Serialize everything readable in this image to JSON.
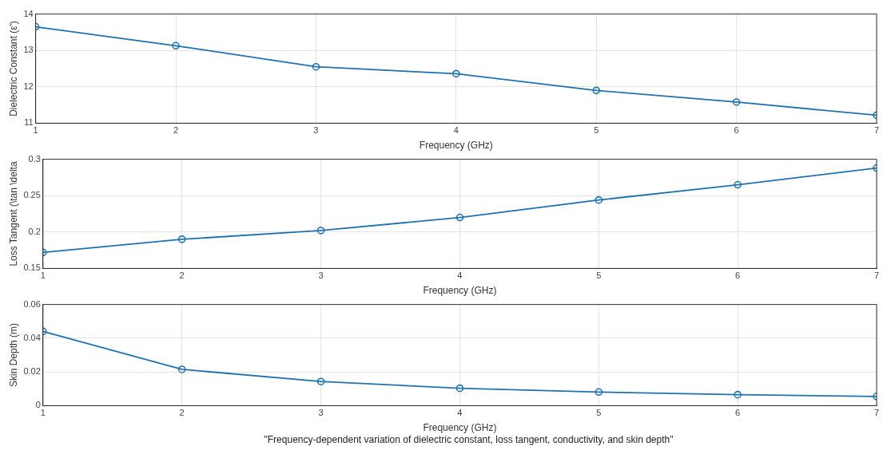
{
  "chart_data": [
    {
      "type": "line",
      "xlabel": "Frequency (GHz)",
      "ylabel": "Dielectric Constant (ε')",
      "x": [
        1,
        2,
        3,
        4,
        5,
        6,
        7
      ],
      "series": [
        {
          "color": "#1f72b0",
          "values": [
            13.65,
            13.13,
            12.55,
            12.36,
            11.9,
            11.58,
            11.22
          ]
        }
      ],
      "xlim": [
        1,
        7
      ],
      "xticks": [
        1,
        2,
        3,
        4,
        5,
        6,
        7
      ],
      "ylim": [
        11,
        14
      ],
      "yticks": [
        11,
        12,
        13,
        14
      ],
      "grid": true,
      "marker": "circle",
      "line_style": "solid",
      "legend": false
    },
    {
      "type": "line",
      "xlabel": "Frequency (GHz)",
      "ylabel": "Loss Tangent (\\tan \\delta",
      "x": [
        1,
        2,
        3,
        4,
        5,
        6,
        7
      ],
      "series": [
        {
          "color": "#1f72b0",
          "values": [
            0.172,
            0.19,
            0.202,
            0.22,
            0.244,
            0.265,
            0.288
          ]
        }
      ],
      "xlim": [
        1,
        7
      ],
      "xticks": [
        1,
        2,
        3,
        4,
        5,
        6,
        7
      ],
      "ylim": [
        0.15,
        0.3
      ],
      "yticks": [
        0.15,
        0.2,
        0.25,
        0.3
      ],
      "grid": true,
      "marker": "circle",
      "line_style": "solid",
      "legend": false
    },
    {
      "type": "line",
      "xlabel": "Frequency (GHz)",
      "ylabel": "Skin Depth (m)",
      "x": [
        1,
        2,
        3,
        4,
        5,
        6,
        7
      ],
      "series": [
        {
          "color": "#1f72b0",
          "values": [
            0.044,
            0.0215,
            0.0143,
            0.0103,
            0.0081,
            0.0065,
            0.0055
          ]
        }
      ],
      "xlim": [
        1,
        7
      ],
      "xticks": [
        1,
        2,
        3,
        4,
        5,
        6,
        7
      ],
      "ylim": [
        0,
        0.06
      ],
      "yticks": [
        0,
        0.02,
        0.04,
        0.06
      ],
      "grid": true,
      "marker": "circle",
      "line_style": "solid",
      "legend": false,
      "annotations": [
        "\"Frequency-dependent variation of dielectric constant, loss tangent, conductivity, and skin depth\""
      ]
    }
  ]
}
